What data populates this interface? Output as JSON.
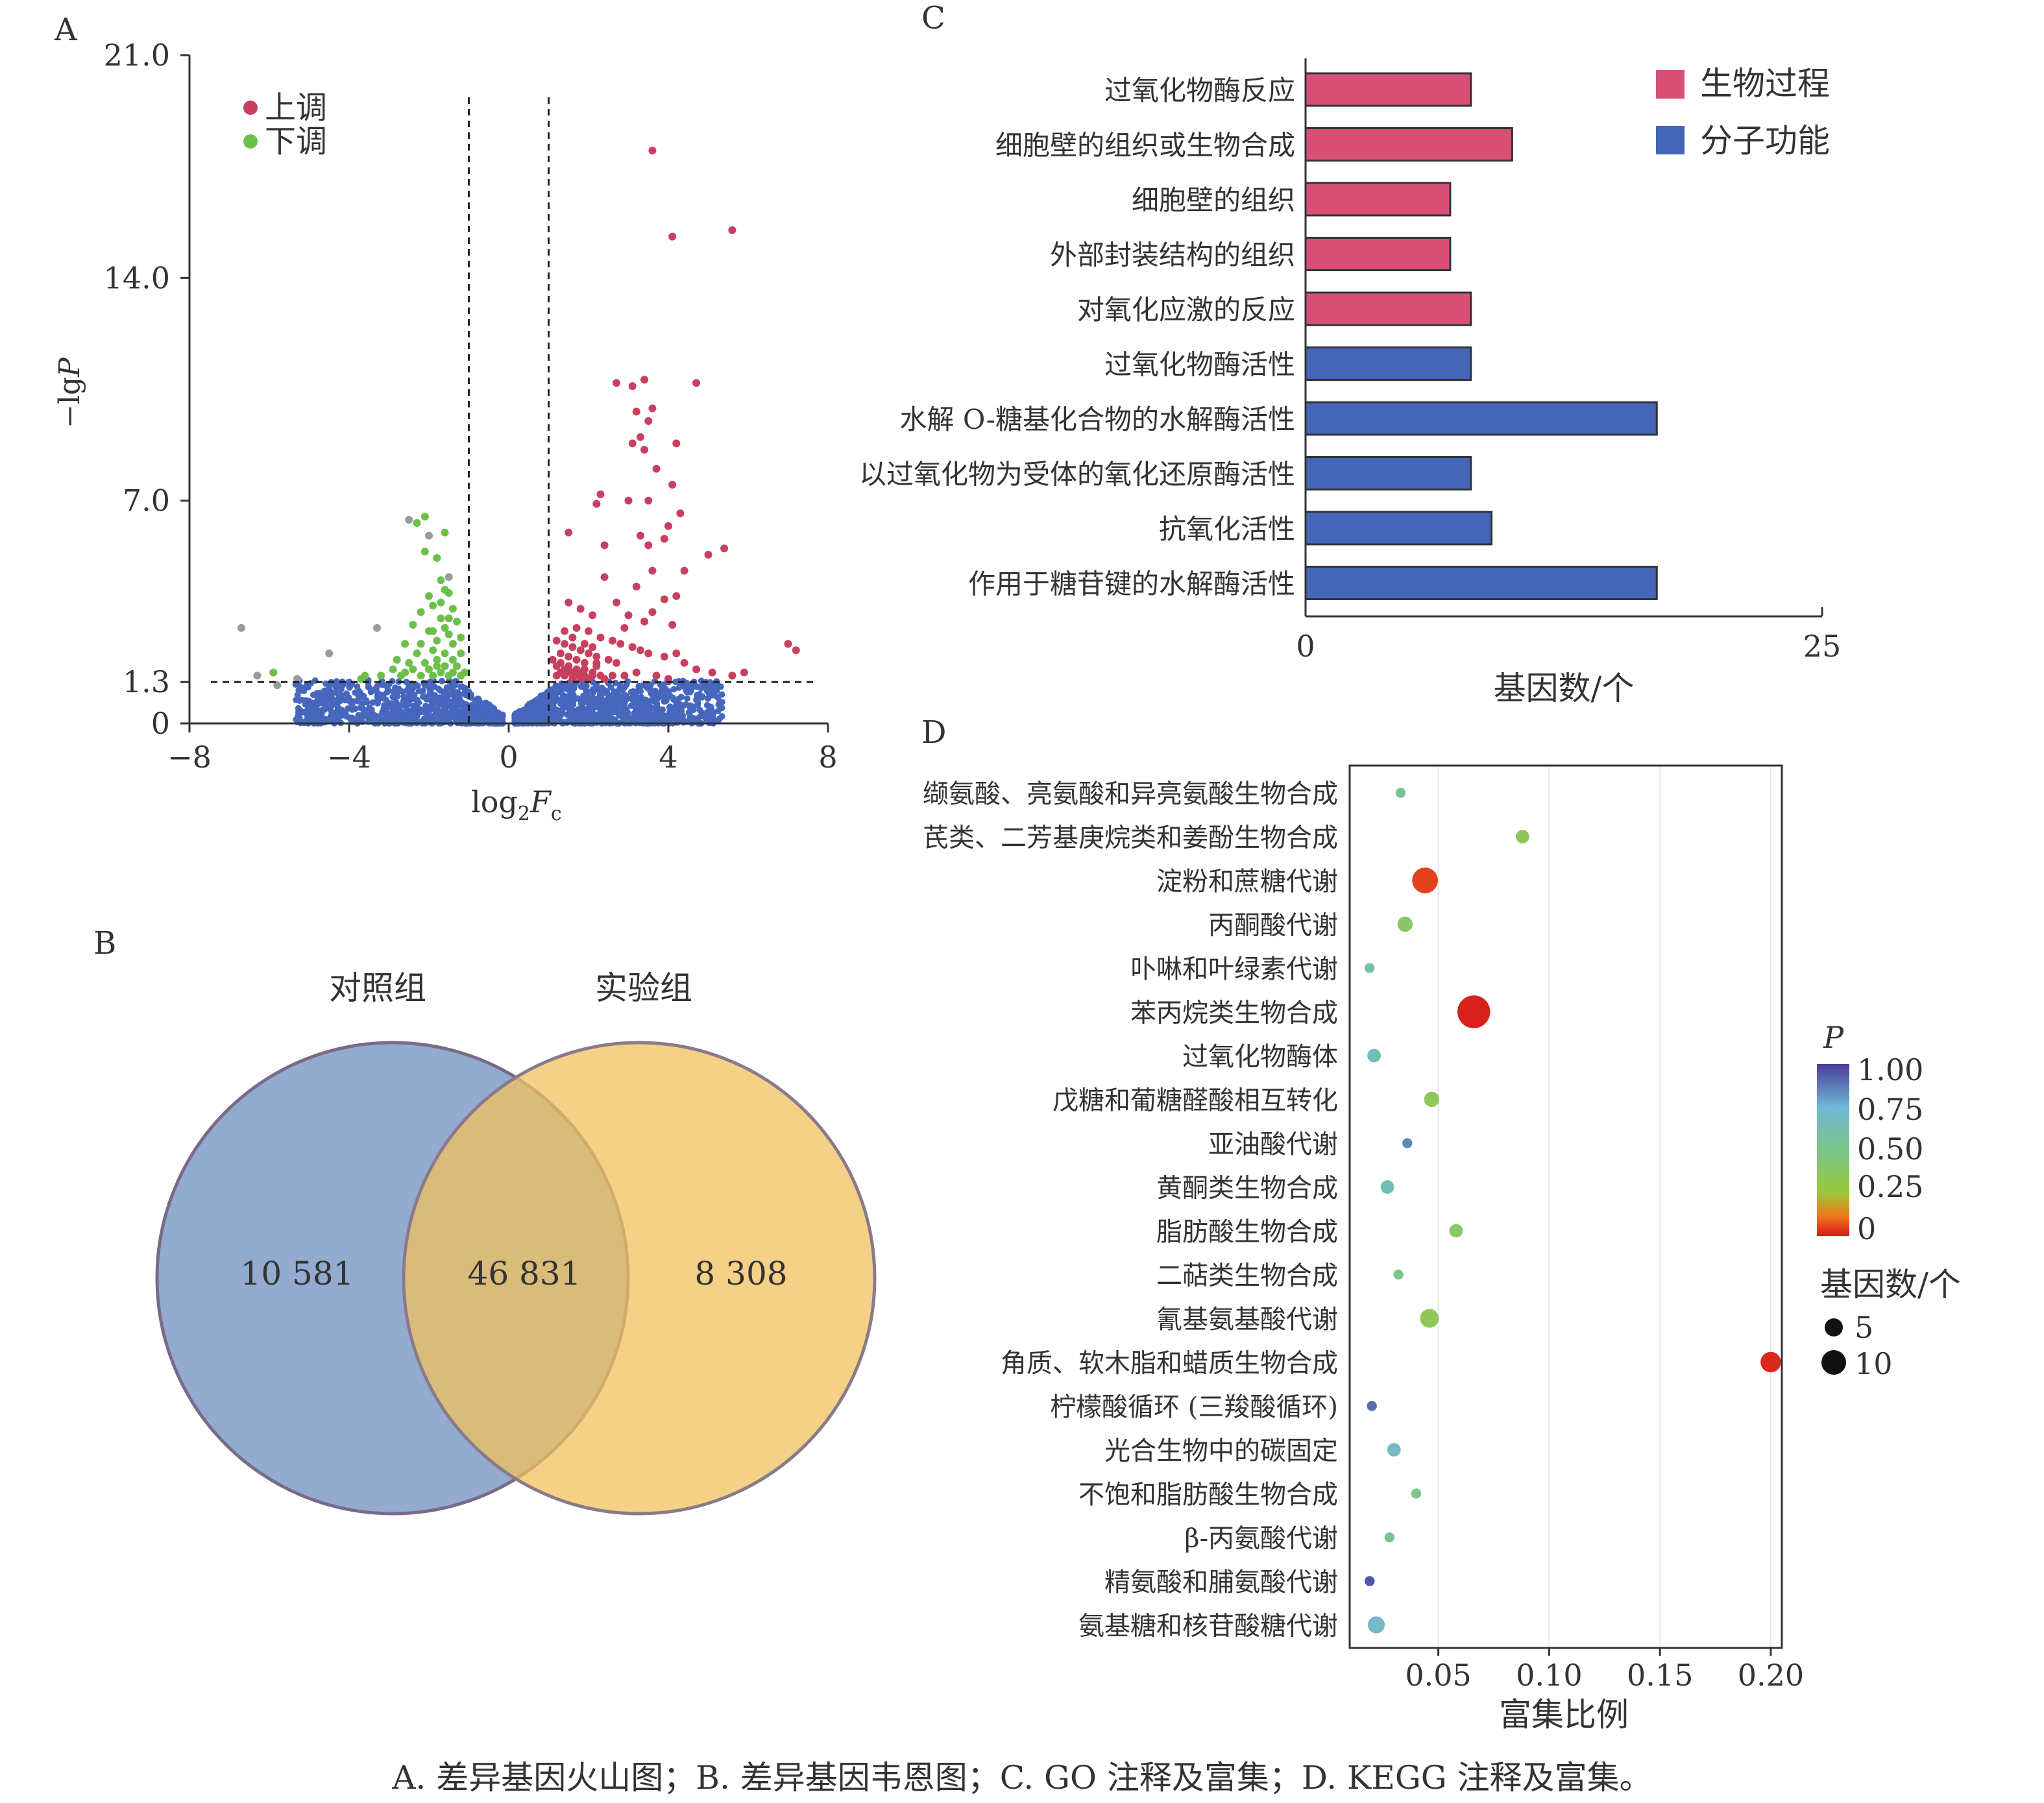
{
  "caption": "A. 差异基因火山图；B. 差异基因韦恩图；C. GO 注释及富集；D. KEGG 注释及富集。",
  "colors": {
    "up": "#c9405e",
    "down": "#6cc04a",
    "ns": "#4766be",
    "grey": "#9a9a9a",
    "venn_a": "#7f9cc6",
    "venn_b": "#f0c25e",
    "venn_overlap": "#c9a55e",
    "bar_bp": "#d95077",
    "bar_mf": "#4565b8"
  },
  "chart_data": [
    {
      "panel": "A",
      "type": "scatter",
      "xlabel_base": "log",
      "xlabel_sub": "2",
      "xlabel_main": "F",
      "xlabel_sub2": "c",
      "ylabel": "-lgP",
      "xlim": [
        -8,
        8
      ],
      "ylim": [
        0,
        21
      ],
      "xticks": [
        "−8",
        "−4",
        "0",
        "4",
        "8"
      ],
      "xtick_values": [
        -8,
        -4,
        0,
        4,
        8
      ],
      "yticks": [
        "0",
        "1.3",
        "7.0",
        "14.0",
        "21.0"
      ],
      "ytick_values": [
        0,
        1.3,
        7,
        14,
        21
      ],
      "vlines": [
        -1,
        1
      ],
      "hline": 1.3,
      "legend": [
        {
          "name": "上调",
          "color": "#c9405e"
        },
        {
          "name": "下调",
          "color": "#6cc04a"
        }
      ],
      "up_points": [
        [
          3.6,
          18.0
        ],
        [
          4.1,
          15.3
        ],
        [
          5.6,
          15.5
        ],
        [
          7.2,
          2.3
        ],
        [
          7.0,
          2.5
        ],
        [
          2.7,
          10.7
        ],
        [
          3.1,
          10.6
        ],
        [
          3.4,
          10.8
        ],
        [
          3.6,
          9.9
        ],
        [
          4.7,
          10.7
        ],
        [
          3.2,
          9.8
        ],
        [
          3.5,
          9.5
        ],
        [
          3.3,
          9.0
        ],
        [
          3.1,
          8.8
        ],
        [
          3.4,
          8.6
        ],
        [
          4.2,
          8.8
        ],
        [
          3.7,
          8.0
        ],
        [
          4.1,
          7.5
        ],
        [
          3.5,
          7.0
        ],
        [
          2.3,
          7.2
        ],
        [
          3.0,
          7.0
        ],
        [
          2.2,
          6.9
        ],
        [
          4.3,
          6.6
        ],
        [
          4.0,
          6.2
        ],
        [
          1.5,
          6.0
        ],
        [
          2.4,
          5.6
        ],
        [
          3.3,
          5.9
        ],
        [
          3.9,
          5.8
        ],
        [
          5.0,
          5.3
        ],
        [
          5.4,
          5.5
        ],
        [
          3.5,
          5.6
        ],
        [
          3.6,
          4.8
        ],
        [
          3.2,
          4.3
        ],
        [
          4.4,
          4.8
        ],
        [
          4.2,
          4.0
        ],
        [
          3.9,
          3.9
        ],
        [
          2.4,
          4.6
        ],
        [
          2.7,
          3.8
        ],
        [
          3.0,
          3.4
        ],
        [
          2.9,
          3.0
        ],
        [
          3.4,
          3.2
        ],
        [
          3.6,
          3.5
        ],
        [
          4.1,
          3.1
        ],
        [
          1.5,
          3.8
        ],
        [
          1.8,
          3.6
        ],
        [
          2.1,
          3.4
        ],
        [
          1.7,
          3.0
        ],
        [
          2.0,
          2.9
        ],
        [
          2.3,
          2.7
        ],
        [
          2.6,
          2.6
        ],
        [
          2.8,
          2.5
        ],
        [
          3.1,
          2.4
        ],
        [
          3.3,
          2.3
        ],
        [
          3.5,
          2.2
        ],
        [
          3.9,
          2.1
        ],
        [
          4.2,
          2.2
        ],
        [
          4.4,
          1.9
        ],
        [
          4.7,
          1.7
        ],
        [
          5.1,
          1.6
        ],
        [
          5.6,
          1.5
        ],
        [
          5.9,
          1.6
        ],
        [
          1.2,
          2.6
        ],
        [
          1.4,
          2.5
        ],
        [
          1.6,
          2.4
        ],
        [
          1.8,
          2.3
        ],
        [
          2.0,
          2.2
        ],
        [
          2.2,
          2.1
        ],
        [
          2.5,
          2.0
        ],
        [
          2.7,
          1.9
        ],
        [
          1.1,
          2.0
        ],
        [
          1.3,
          1.9
        ],
        [
          1.5,
          1.8
        ],
        [
          1.7,
          1.7
        ],
        [
          1.9,
          1.7
        ],
        [
          2.1,
          1.6
        ],
        [
          2.3,
          1.5
        ],
        [
          2.6,
          1.5
        ],
        [
          1.2,
          1.5
        ],
        [
          1.4,
          1.5
        ],
        [
          1.6,
          1.4
        ],
        [
          1.8,
          1.4
        ],
        [
          2.0,
          1.4
        ],
        [
          2.4,
          1.4
        ],
        [
          2.9,
          1.5
        ],
        [
          3.2,
          1.6
        ],
        [
          3.7,
          1.5
        ],
        [
          4.0,
          1.4
        ],
        [
          1.3,
          2.2
        ],
        [
          1.5,
          2.1
        ],
        [
          1.7,
          2.0
        ],
        [
          1.9,
          1.9
        ],
        [
          2.2,
          1.8
        ],
        [
          1.4,
          1.7
        ],
        [
          1.6,
          1.6
        ],
        [
          1.8,
          1.6
        ],
        [
          2.1,
          1.5
        ],
        [
          1.2,
          1.8
        ],
        [
          1.3,
          1.6
        ],
        [
          1.5,
          1.6
        ],
        [
          1.7,
          1.5
        ],
        [
          1.9,
          1.5
        ],
        [
          2.1,
          2.4
        ],
        [
          1.9,
          2.5
        ],
        [
          1.6,
          2.7
        ],
        [
          1.4,
          2.9
        ],
        [
          2.2,
          1.9
        ]
      ],
      "down_points": [
        [
          -2.1,
          6.5
        ],
        [
          -2.3,
          6.3
        ],
        [
          -1.6,
          6.0
        ],
        [
          -2.1,
          5.4
        ],
        [
          -1.8,
          5.2
        ],
        [
          -1.7,
          4.5
        ],
        [
          -1.6,
          4.2
        ],
        [
          -2.0,
          4.0
        ],
        [
          -1.5,
          4.1
        ],
        [
          -1.9,
          3.7
        ],
        [
          -2.2,
          3.5
        ],
        [
          -1.4,
          3.6
        ],
        [
          -1.7,
          3.3
        ],
        [
          -2.4,
          3.1
        ],
        [
          -1.3,
          3.2
        ],
        [
          -1.6,
          3.0
        ],
        [
          -2.0,
          2.9
        ],
        [
          -1.5,
          2.8
        ],
        [
          -1.8,
          2.6
        ],
        [
          -2.6,
          2.5
        ],
        [
          -1.2,
          2.7
        ],
        [
          -1.4,
          2.5
        ],
        [
          -1.9,
          2.3
        ],
        [
          -2.3,
          2.2
        ],
        [
          -1.6,
          2.2
        ],
        [
          -1.2,
          2.2
        ],
        [
          -2.8,
          2.0
        ],
        [
          -1.8,
          2.0
        ],
        [
          -1.4,
          2.0
        ],
        [
          -2.5,
          1.9
        ],
        [
          -2.1,
          1.9
        ],
        [
          -1.6,
          1.8
        ],
        [
          -1.3,
          1.8
        ],
        [
          -2.9,
          1.7
        ],
        [
          -2.4,
          1.7
        ],
        [
          -2.0,
          1.7
        ],
        [
          -1.7,
          1.6
        ],
        [
          -1.4,
          1.6
        ],
        [
          -1.1,
          1.6
        ],
        [
          -3.2,
          1.5
        ],
        [
          -2.7,
          1.5
        ],
        [
          -2.2,
          1.5
        ],
        [
          -1.9,
          1.5
        ],
        [
          -1.5,
          1.5
        ],
        [
          -1.2,
          1.5
        ],
        [
          -3.7,
          1.4
        ],
        [
          -5.9,
          1.6
        ],
        [
          -3.6,
          1.5
        ],
        [
          -2.6,
          1.6
        ],
        [
          -1.8,
          1.8
        ],
        [
          -2.2,
          2.5
        ],
        [
          -1.9,
          2.9
        ],
        [
          -1.5,
          3.3
        ],
        [
          -1.7,
          3.8
        ]
      ],
      "grey_points": [
        [
          -6.7,
          3.0
        ],
        [
          -6.3,
          1.5
        ],
        [
          -5.3,
          1.4
        ],
        [
          -4.5,
          2.2
        ],
        [
          -3.3,
          3.0
        ],
        [
          -2.5,
          6.4
        ],
        [
          -2.0,
          5.9
        ],
        [
          -5.8,
          1.2
        ],
        [
          -1.5,
          4.6
        ]
      ]
    },
    {
      "panel": "B",
      "type": "venn",
      "sets": [
        "对照组",
        "实验组"
      ],
      "values": {
        "only_a": "10 581",
        "both": "46 831",
        "only_b": "8 308"
      }
    },
    {
      "panel": "C",
      "type": "bar",
      "orientation": "horizontal",
      "xlabel": "基因数/个",
      "xlim": [
        0,
        25
      ],
      "xticks": [
        "0",
        "25"
      ],
      "legend": [
        {
          "name": "生物过程",
          "color": "#d95077"
        },
        {
          "name": "分子功能",
          "color": "#4565b8"
        }
      ],
      "categories": [
        "过氧化物酶反应",
        "细胞壁的组织或生物合成",
        "细胞壁的组织",
        "外部封装结构的组织",
        "对氧化应激的反应",
        "过氧化物酶活性",
        "水解 O-糖基化合物的水解酶活性",
        "以过氧化物为受体的氧化还原酶活性",
        "抗氧化活性",
        "作用于糖苷键的水解酶活性"
      ],
      "values": [
        8,
        10,
        7,
        7,
        8,
        8,
        17,
        8,
        9,
        17
      ],
      "group": [
        "生物过程",
        "生物过程",
        "生物过程",
        "生物过程",
        "生物过程",
        "分子功能",
        "分子功能",
        "分子功能",
        "分子功能",
        "分子功能"
      ]
    },
    {
      "panel": "D",
      "type": "scatter",
      "xlabel": "富集比例",
      "xlim": [
        0.01,
        0.205
      ],
      "xticks": [
        "0.05",
        "0.10",
        "0.15",
        "0.20"
      ],
      "xtick_values": [
        0.05,
        0.1,
        0.15,
        0.2
      ],
      "colorbar_title": "P",
      "colorbar_ticks": [
        "1.00",
        "0.75",
        "0.50",
        "0.25",
        "0"
      ],
      "size_legend_title": "基因数/个",
      "size_legend": [
        {
          "label": "5",
          "size": 5
        },
        {
          "label": "10",
          "size": 10
        }
      ],
      "categories": [
        "缬氨酸、亮氨酸和异亮氨酸生物合成",
        "芪类、二芳基庚烷类和姜酚生物合成",
        "淀粉和蔗糖代谢",
        "丙酮酸代谢",
        "卟啉和叶绿素代谢",
        "苯丙烷类生物合成",
        "过氧化物酶体",
        "戊糖和葡糖醛酸相互转化",
        "亚油酸代谢",
        "黄酮类生物合成",
        "脂肪酸生物合成",
        "二萜类生物合成",
        "氰基氨基酸代谢",
        "角质、软木脂和蜡质生物合成",
        "柠檬酸循环 (三羧酸循环)",
        "光合生物中的碳固定",
        "不饱和脂肪酸生物合成",
        "β-丙氨酸代谢",
        "精氨酸和脯氨酸代谢",
        "氨基糖和核苷酸糖代谢"
      ],
      "points": [
        {
          "ratio": 0.033,
          "p": 0.55,
          "count": 2
        },
        {
          "ratio": 0.088,
          "p": 0.35,
          "count": 4
        },
        {
          "ratio": 0.044,
          "p": 0.05,
          "count": 11
        },
        {
          "ratio": 0.035,
          "p": 0.4,
          "count": 5
        },
        {
          "ratio": 0.019,
          "p": 0.6,
          "count": 2
        },
        {
          "ratio": 0.066,
          "p": 0.01,
          "count": 15
        },
        {
          "ratio": 0.021,
          "p": 0.65,
          "count": 4
        },
        {
          "ratio": 0.047,
          "p": 0.35,
          "count": 5
        },
        {
          "ratio": 0.036,
          "p": 0.85,
          "count": 2
        },
        {
          "ratio": 0.027,
          "p": 0.65,
          "count": 4
        },
        {
          "ratio": 0.058,
          "p": 0.4,
          "count": 4
        },
        {
          "ratio": 0.032,
          "p": 0.5,
          "count": 2
        },
        {
          "ratio": 0.046,
          "p": 0.35,
          "count": 7
        },
        {
          "ratio": 0.2,
          "p": 0.02,
          "count": 8
        },
        {
          "ratio": 0.02,
          "p": 0.9,
          "count": 2
        },
        {
          "ratio": 0.03,
          "p": 0.7,
          "count": 4
        },
        {
          "ratio": 0.04,
          "p": 0.5,
          "count": 2
        },
        {
          "ratio": 0.028,
          "p": 0.55,
          "count": 2
        },
        {
          "ratio": 0.019,
          "p": 0.95,
          "count": 2
        },
        {
          "ratio": 0.022,
          "p": 0.7,
          "count": 6
        }
      ]
    }
  ],
  "panel_letters": {
    "a": "A",
    "b": "B",
    "c": "C",
    "d": "D"
  }
}
